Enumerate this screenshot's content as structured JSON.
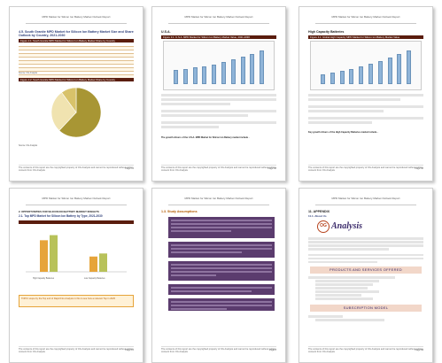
{
  "pages": [
    {
      "header": "MPD Market for Silicon Ion Battery Market Outlook Report",
      "section_title": "4.5. South Granite MPD Market for Silicon Ion Battery Market Size and Share Outlook by Country, 2021-2030",
      "table_title": "Figure 2.1: South Granite MPD Market for Silicon Ion Battery Market Share by Country",
      "source": "Source: OG Analysis",
      "pie_title": "Figure 2.2: South Granite MPD Market for Silicon Ion Battery Market Share by Country",
      "footer_note": "The contents of this report are the copyrighted property of OG Analysis and cannot be reproduced without written consent from OG Analysis",
      "page_no": "Page 31"
    },
    {
      "header": "MPD Market for Silicon Ion Battery Market Outlook Report",
      "section_title": "U.S.A.",
      "chart_title": "Figure 3.1: U.S.A. MPD Market for Silicon Ion Battery Market Value, 2021-2030",
      "growth_line": "The growth drivers of the U.S.A. MPD Market for Silicon Ion Battery market include -",
      "footer_note": "The contents of this report are the copyrighted property of OG Analysis and cannot be reproduced without written consent from OG Analysis",
      "page_no": "Page 38"
    },
    {
      "header": "MPD Market for Silicon Ion Battery Market Outlook Report",
      "section_title": "High Capacity Batteries",
      "chart_title": "Figure 4.1: Global High Capacity MPD Market for Silicon Ion Battery Market Value",
      "growth_line": "Key growth drivers of the High Capacity Batteries market include -",
      "footer_note": "The contents of this report are the copyrighted property of OG Analysis and cannot be reproduced without written consent from OG Analysis",
      "page_no": "Page 46"
    },
    {
      "header": "MPD Market for Silicon Ion Battery Market Outlook Report",
      "section_title": "2. OPPORTUNITIES FOR SILICON ION BATTERY MARKET INSIGHTS",
      "sub_title": "2.1. Top MPD Market for Silicon Ion Battery by Type, 2021-2030",
      "legend_a": "High Capacity Batteries",
      "legend_b": "Low Capacity Batteries",
      "callout": "TOPIC scope by the Top end of Rapid Fire Analysis in this to see how a relevant Top in 2025",
      "footer_note": "The contents of this report are the copyrighted property of OG Analysis and cannot be reproduced without written consent from OG Analysis",
      "page_no": "Page 15"
    },
    {
      "header": "MPD Market for Silicon Ion Battery Market Outlook Report",
      "section_title": "1.3. Study Assumptions",
      "footer_note": "The contents of this report are the copyrighted property of OG Analysis and cannot be reproduced without written consent from OG Analysis",
      "page_no": "Page 8"
    },
    {
      "header": "MPD Market for Silicon Ion Battery Market Outlook Report",
      "section_title": "11. APPENDIX",
      "sub_title": "11.1. About Us",
      "logo_og": "OG",
      "logo_text": "Analysis",
      "products_banner": "PRODUCTS AND SERVICES OFFERED",
      "subscription_banner": "SUBSCRIPTION MODEL",
      "footer_note": "The contents of this report are the copyrighted property of OG Analysis and cannot be reproduced without written consent from OG Analysis",
      "page_no": "Page 99"
    }
  ],
  "pie_slices": [
    {
      "label": "Country A",
      "value": 62,
      "color": "#a89634"
    },
    {
      "label": "Country B",
      "value": 28,
      "color": "#f0e3b0"
    },
    {
      "label": "Country C",
      "value": 10,
      "color": "#d8c26a"
    }
  ],
  "page2_bars": [
    28,
    30,
    33,
    36,
    40,
    44,
    49,
    55,
    61,
    68
  ],
  "page3_bars": [
    20,
    23,
    27,
    31,
    36,
    41,
    47,
    54,
    61,
    69
  ],
  "page4_groups": [
    [
      62,
      72
    ],
    [
      30,
      36
    ]
  ],
  "colors": {
    "brand_dark": "#5a1d0e",
    "accent": "#e6a43a",
    "purple": "#5b3c6e",
    "bar_blue": "#8fb4d8"
  }
}
